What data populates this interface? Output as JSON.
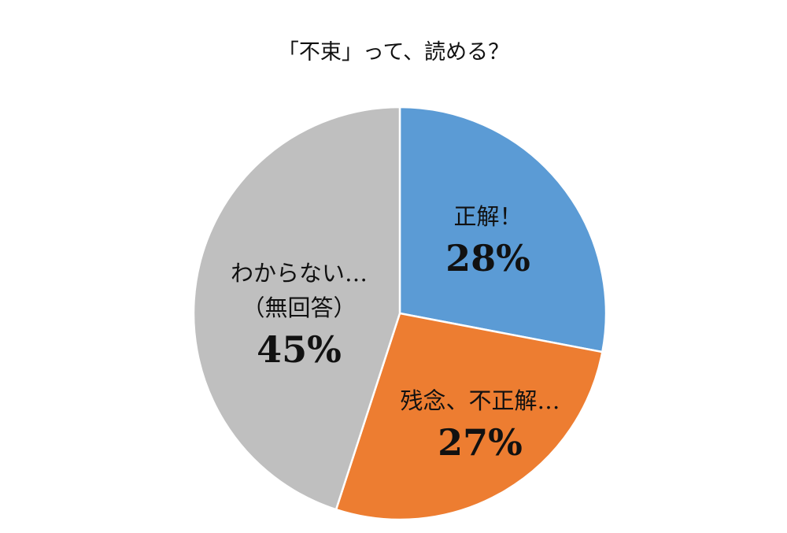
{
  "chart_data": {
    "type": "pie",
    "title": "「不束」って、読める？",
    "categories": [
      "正解！",
      "残念、不正解…",
      "わからない…\n（無回答）"
    ],
    "values": [
      28,
      27,
      45
    ],
    "value_labels": [
      "28%",
      "27%",
      "45%"
    ],
    "colors": [
      "#5b9bd5",
      "#ed7d31",
      "#bfbfbf"
    ]
  }
}
